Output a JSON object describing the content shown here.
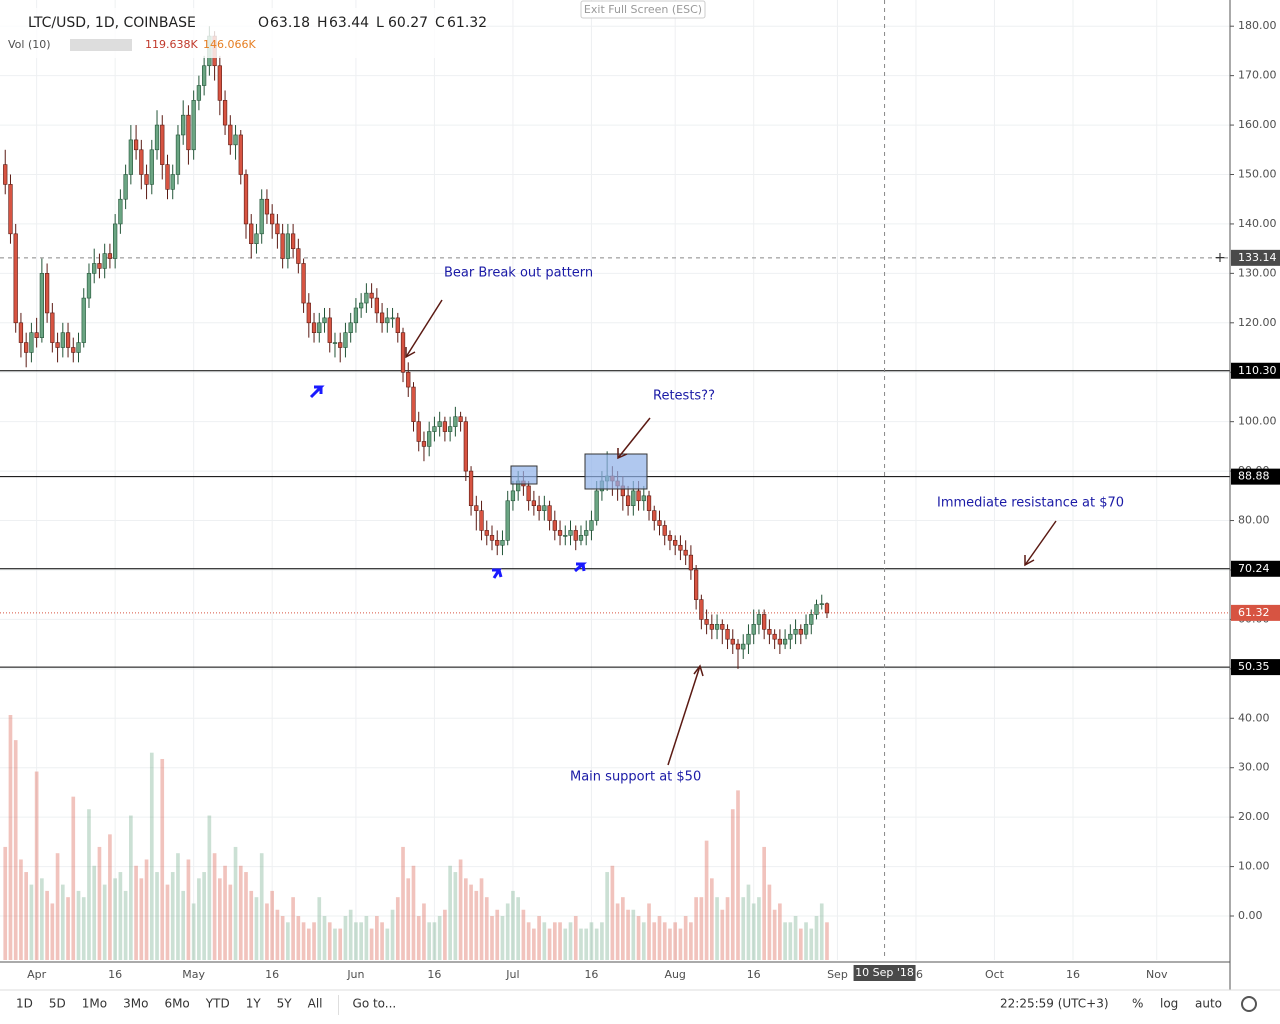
{
  "header": {
    "symbol": "LTC/USD, 1D, COINBASE",
    "ohlc": [
      {
        "label": "O",
        "value": 63.18
      },
      {
        "label": "H",
        "value": 63.44
      },
      {
        "label": "L",
        "value": 60.27
      },
      {
        "label": "C",
        "value": 61.32
      }
    ],
    "volume_label": "Vol (10)",
    "volume_values": [
      "119.638K",
      "146.066K"
    ],
    "exit_button": "Exit Full Screen (ESC)"
  },
  "chart_data": {
    "type": "candlestick",
    "x": [
      "2018-03-26",
      "2018-03-27",
      "2018-03-28",
      "2018-03-29",
      "2018-03-30",
      "2018-03-31",
      "2018-04-01",
      "2018-04-02",
      "2018-04-03",
      "2018-04-04",
      "2018-04-05",
      "2018-04-06",
      "2018-04-07",
      "2018-04-08",
      "2018-04-09",
      "2018-04-10",
      "2018-04-11",
      "2018-04-12",
      "2018-04-13",
      "2018-04-14",
      "2018-04-15",
      "2018-04-16",
      "2018-04-17",
      "2018-04-18",
      "2018-04-19",
      "2018-04-20",
      "2018-04-21",
      "2018-04-22",
      "2018-04-23",
      "2018-04-24",
      "2018-04-25",
      "2018-04-26",
      "2018-04-27",
      "2018-04-28",
      "2018-04-29",
      "2018-04-30",
      "2018-05-01",
      "2018-05-02",
      "2018-05-03",
      "2018-05-04",
      "2018-05-05",
      "2018-05-06",
      "2018-05-07",
      "2018-05-08",
      "2018-05-09",
      "2018-05-10",
      "2018-05-11",
      "2018-05-12",
      "2018-05-13",
      "2018-05-14",
      "2018-05-15",
      "2018-05-16",
      "2018-05-17",
      "2018-05-18",
      "2018-05-19",
      "2018-05-20",
      "2018-05-21",
      "2018-05-22",
      "2018-05-23",
      "2018-05-24",
      "2018-05-25",
      "2018-05-26",
      "2018-05-27",
      "2018-05-28",
      "2018-05-29",
      "2018-05-30",
      "2018-05-31",
      "2018-06-01",
      "2018-06-02",
      "2018-06-03",
      "2018-06-04",
      "2018-06-05",
      "2018-06-06",
      "2018-06-07",
      "2018-06-08",
      "2018-06-09",
      "2018-06-10",
      "2018-06-11",
      "2018-06-12",
      "2018-06-13",
      "2018-06-14",
      "2018-06-15",
      "2018-06-16",
      "2018-06-17",
      "2018-06-18",
      "2018-06-19",
      "2018-06-20",
      "2018-06-21",
      "2018-06-22",
      "2018-06-23",
      "2018-06-24",
      "2018-06-25",
      "2018-06-26",
      "2018-06-27",
      "2018-06-28",
      "2018-06-29",
      "2018-06-30",
      "2018-07-01",
      "2018-07-02",
      "2018-07-03",
      "2018-07-04",
      "2018-07-05",
      "2018-07-06",
      "2018-07-07",
      "2018-07-08",
      "2018-07-09",
      "2018-07-10",
      "2018-07-11",
      "2018-07-12",
      "2018-07-13",
      "2018-07-14",
      "2018-07-15",
      "2018-07-16",
      "2018-07-17",
      "2018-07-18",
      "2018-07-19",
      "2018-07-20",
      "2018-07-21",
      "2018-07-22",
      "2018-07-23",
      "2018-07-24",
      "2018-07-25",
      "2018-07-26",
      "2018-07-27",
      "2018-07-28",
      "2018-07-29",
      "2018-07-30",
      "2018-07-31",
      "2018-08-01",
      "2018-08-02",
      "2018-08-03",
      "2018-08-04",
      "2018-08-05",
      "2018-08-06",
      "2018-08-07",
      "2018-08-08",
      "2018-08-09",
      "2018-08-10",
      "2018-08-11",
      "2018-08-12",
      "2018-08-13",
      "2018-08-14",
      "2018-08-15",
      "2018-08-16",
      "2018-08-17",
      "2018-08-18",
      "2018-08-19",
      "2018-08-20",
      "2018-08-21",
      "2018-08-22",
      "2018-08-23",
      "2018-08-24",
      "2018-08-25",
      "2018-08-26",
      "2018-08-27",
      "2018-08-28",
      "2018-08-29",
      "2018-08-30"
    ],
    "open": [
      152,
      148,
      138,
      120,
      116,
      114,
      118,
      117,
      130,
      122,
      116,
      115,
      118,
      115,
      114,
      116,
      125,
      130,
      132,
      131,
      134,
      133,
      140,
      145,
      150,
      157,
      155,
      150,
      148,
      155,
      160,
      152,
      147,
      150,
      158,
      162,
      155,
      165,
      168,
      172,
      178,
      172,
      165,
      160,
      156,
      158,
      150,
      140,
      136,
      138,
      145,
      142,
      140,
      138,
      133,
      138,
      135,
      132,
      124,
      120,
      118,
      120,
      121,
      116,
      116,
      115,
      118,
      120,
      123,
      124,
      126,
      125,
      122,
      120,
      121,
      121,
      118,
      110,
      107,
      100,
      96,
      95,
      98,
      99,
      100,
      98,
      99,
      101,
      100,
      90,
      83,
      82,
      78,
      77,
      76,
      75,
      76,
      84,
      86,
      88,
      87,
      84,
      83,
      82,
      83,
      80,
      78,
      77,
      77,
      78,
      76,
      77,
      78,
      80,
      86,
      88,
      89,
      88,
      87,
      85,
      83,
      86,
      84,
      85,
      82,
      80,
      79,
      77,
      76,
      75,
      74,
      73,
      70,
      64,
      60,
      59,
      58,
      59,
      58,
      56,
      55,
      54,
      55,
      57,
      59,
      61,
      58,
      57,
      56,
      55,
      56,
      57,
      58,
      57,
      59,
      61,
      63,
      63.18
    ],
    "high": [
      155,
      150,
      140,
      122,
      118,
      120,
      121,
      133,
      132,
      124,
      118,
      120,
      120,
      117,
      118,
      127,
      132,
      135,
      134,
      136,
      136,
      142,
      147,
      152,
      160,
      160,
      157,
      152,
      157,
      163,
      162,
      154,
      152,
      160,
      165,
      164,
      167,
      170,
      174,
      180,
      179,
      174,
      167,
      162,
      160,
      159,
      151,
      142,
      140,
      147,
      147,
      144,
      142,
      140,
      140,
      140,
      137,
      133,
      126,
      122,
      122,
      123,
      123,
      118,
      118,
      120,
      122,
      125,
      126,
      128,
      128,
      127,
      124,
      123,
      123,
      122,
      119,
      112,
      108,
      102,
      98,
      100,
      101,
      102,
      101,
      101,
      103,
      102,
      101,
      91,
      85,
      84,
      80,
      79,
      78,
      78,
      86,
      88,
      90,
      90,
      88,
      86,
      85,
      85,
      84,
      82,
      80,
      79,
      80,
      79,
      79,
      80,
      82,
      88,
      90,
      94,
      91,
      90,
      89,
      87,
      88,
      88,
      87,
      86,
      83,
      82,
      80,
      78,
      77,
      77,
      76,
      75,
      71,
      65,
      62,
      61,
      61,
      60,
      59,
      58,
      56,
      57,
      59,
      62,
      62,
      62,
      60,
      58,
      58,
      58,
      59,
      60,
      59,
      61,
      62,
      64,
      65,
      63.44
    ],
    "low": [
      146,
      136,
      118,
      113,
      111,
      112,
      115,
      116,
      120,
      114,
      112,
      113,
      113,
      112,
      112,
      115,
      123,
      128,
      129,
      129,
      131,
      131,
      138,
      143,
      148,
      153,
      147,
      145,
      146,
      153,
      149,
      145,
      145,
      148,
      156,
      152,
      153,
      163,
      166,
      170,
      169,
      162,
      158,
      154,
      153,
      148,
      137,
      133,
      134,
      136,
      140,
      137,
      135,
      131,
      131,
      133,
      130,
      122,
      117,
      116,
      116,
      118,
      114,
      113,
      112,
      113,
      116,
      118,
      121,
      122,
      123,
      120,
      118,
      118,
      119,
      116,
      108,
      105,
      98,
      94,
      92,
      93,
      96,
      97,
      96,
      96,
      97,
      98,
      88,
      81,
      78,
      76,
      75,
      74,
      73,
      73,
      75,
      82,
      84,
      85,
      82,
      81,
      80,
      80,
      78,
      76,
      75,
      75,
      75,
      74,
      75,
      75,
      76,
      79,
      84,
      86,
      85,
      84,
      82,
      81,
      81,
      82,
      82,
      80,
      78,
      77,
      75,
      74,
      73,
      72,
      71,
      68,
      62,
      58,
      57,
      56,
      56,
      55,
      54,
      53,
      50,
      52,
      53,
      55,
      57,
      56,
      55,
      54,
      53,
      54,
      54,
      55,
      55,
      56,
      57,
      60,
      62,
      60.27
    ],
    "close": [
      148,
      138,
      120,
      116,
      114,
      118,
      117,
      130,
      122,
      116,
      115,
      118,
      115,
      114,
      116,
      125,
      130,
      132,
      131,
      134,
      133,
      140,
      145,
      150,
      157,
      155,
      150,
      148,
      155,
      160,
      152,
      147,
      150,
      158,
      162,
      155,
      165,
      168,
      172,
      178,
      172,
      165,
      160,
      156,
      158,
      150,
      140,
      136,
      138,
      145,
      142,
      140,
      138,
      133,
      138,
      135,
      132,
      124,
      120,
      118,
      120,
      121,
      116,
      116,
      115,
      118,
      120,
      123,
      124,
      126,
      125,
      122,
      120,
      121,
      121,
      118,
      110,
      107,
      100,
      96,
      95,
      98,
      99,
      100,
      98,
      99,
      101,
      100,
      90,
      83,
      82,
      78,
      77,
      76,
      75,
      76,
      84,
      86,
      88,
      87,
      84,
      83,
      82,
      83,
      80,
      78,
      77,
      77,
      78,
      76,
      77,
      78,
      80,
      86,
      88,
      89,
      88,
      87,
      85,
      83,
      86,
      84,
      85,
      82,
      80,
      79,
      77,
      76,
      75,
      74,
      73,
      70,
      64,
      60,
      59,
      58,
      59,
      58,
      56,
      55,
      54,
      55,
      57,
      59,
      61,
      58,
      57,
      56,
      55,
      56,
      57,
      58,
      57,
      59,
      61,
      63,
      63.18,
      61.32
    ],
    "volume": [
      180,
      390,
      350,
      160,
      140,
      120,
      300,
      130,
      110,
      90,
      170,
      120,
      100,
      260,
      110,
      100,
      240,
      150,
      180,
      120,
      200,
      130,
      140,
      110,
      230,
      150,
      130,
      160,
      330,
      140,
      320,
      120,
      140,
      170,
      110,
      160,
      90,
      130,
      140,
      230,
      170,
      130,
      150,
      120,
      180,
      150,
      140,
      110,
      100,
      170,
      90,
      110,
      80,
      70,
      60,
      100,
      70,
      60,
      50,
      60,
      100,
      70,
      60,
      50,
      50,
      70,
      80,
      60,
      60,
      70,
      50,
      70,
      60,
      50,
      80,
      100,
      180,
      130,
      150,
      70,
      90,
      60,
      60,
      70,
      80,
      150,
      140,
      160,
      130,
      120,
      110,
      130,
      100,
      70,
      80,
      70,
      90,
      110,
      100,
      80,
      60,
      50,
      70,
      60,
      50,
      60,
      60,
      50,
      60,
      70,
      50,
      50,
      60,
      50,
      60,
      140,
      150,
      90,
      100,
      80,
      80,
      70,
      60,
      90,
      60,
      70,
      60,
      50,
      60,
      50,
      70,
      60,
      100,
      100,
      190,
      130,
      100,
      80,
      100,
      240,
      270,
      100,
      120,
      90,
      100,
      180,
      120,
      80,
      90,
      60,
      60,
      70,
      50,
      60,
      50,
      70,
      90,
      60
    ],
    "up_color": "#6ba583",
    "down_color": "#d75442",
    "xlim": [
      "2018-03-25",
      "2018-11-15"
    ],
    "xticks": [
      {
        "value": "2018-04-01",
        "label": "Apr"
      },
      {
        "value": "2018-04-16",
        "label": "16"
      },
      {
        "value": "2018-05-01",
        "label": "May"
      },
      {
        "value": "2018-05-16",
        "label": "16"
      },
      {
        "value": "2018-06-01",
        "label": "Jun"
      },
      {
        "value": "2018-06-16",
        "label": "16"
      },
      {
        "value": "2018-07-01",
        "label": "Jul"
      },
      {
        "value": "2018-07-16",
        "label": "16"
      },
      {
        "value": "2018-08-01",
        "label": "Aug"
      },
      {
        "value": "2018-08-16",
        "label": "16"
      },
      {
        "value": "2018-09-01",
        "label": "Sep"
      },
      {
        "value": "2018-09-16",
        "label": "16"
      },
      {
        "value": "2018-10-01",
        "label": "Oct"
      },
      {
        "value": "2018-10-16",
        "label": "16"
      },
      {
        "value": "2018-11-01",
        "label": "Nov"
      }
    ],
    "ylim": [
      -8.9,
      185.3
    ],
    "yticks": [
      {
        "value": 0,
        "label": "0.00"
      },
      {
        "value": 10,
        "label": "10.00"
      },
      {
        "value": 20,
        "label": "20.00"
      },
      {
        "value": 30,
        "label": "30.00"
      },
      {
        "value": 40,
        "label": "40.00"
      },
      {
        "value": 50,
        "label": "50.00"
      },
      {
        "value": 60,
        "label": "60.00"
      },
      {
        "value": 70,
        "label": "70.00"
      },
      {
        "value": 80,
        "label": "80.00"
      },
      {
        "value": 90,
        "label": "90.00"
      },
      {
        "value": 100,
        "label": "100.00"
      },
      {
        "value": 110,
        "label": "110.00"
      },
      {
        "value": 120,
        "label": "120.00"
      },
      {
        "value": 130,
        "label": "130.00"
      },
      {
        "value": 140,
        "label": "140.00"
      },
      {
        "value": 150,
        "label": "150.00"
      },
      {
        "value": 160,
        "label": "160.00"
      },
      {
        "value": 170,
        "label": "170.00"
      },
      {
        "value": 180,
        "label": "180.00"
      }
    ],
    "grid": true,
    "levels": [
      {
        "value": 110.3,
        "label": "110.30"
      },
      {
        "value": 88.88,
        "label": "88.88"
      },
      {
        "value": 70.24,
        "label": "70.24"
      },
      {
        "value": 50.35,
        "label": "50.35"
      }
    ],
    "crosshair": {
      "y": {
        "value": 133.14,
        "label": "133.14"
      },
      "x": {
        "value": "2018-09-10",
        "label": "10 Sep '18"
      }
    },
    "last_price": {
      "value": 61.32,
      "label": "61.32"
    },
    "annotations": [
      "Bear Break out pattern",
      "Retests??",
      "Immediate resistance at $70",
      "Main support at $50"
    ]
  },
  "toolbar": {
    "ranges": [
      "1D",
      "5D",
      "1Mo",
      "3Mo",
      "6Mo",
      "YTD",
      "1Y",
      "5Y",
      "All"
    ],
    "goto": "Go to...",
    "clock": "22:25:59 (UTC+3)",
    "options": [
      "%",
      "log",
      "auto"
    ]
  }
}
